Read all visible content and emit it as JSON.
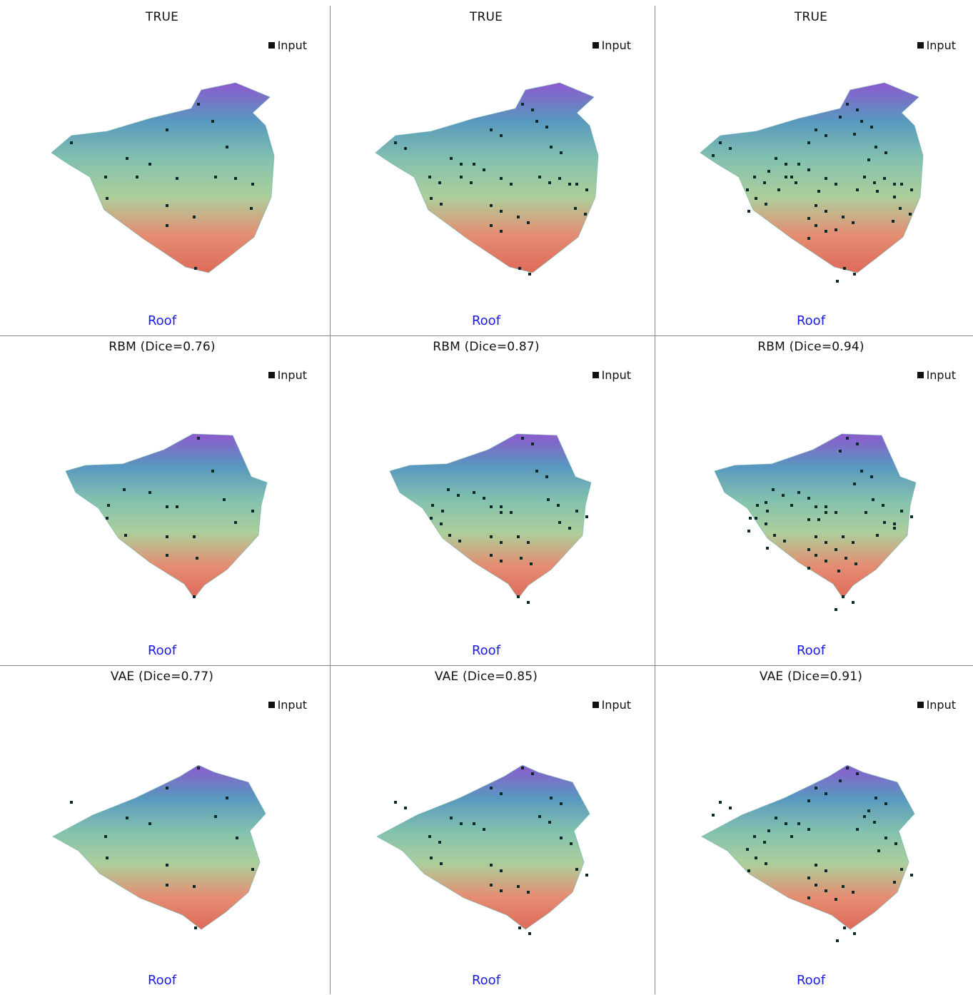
{
  "colors": {
    "roof": "#1a1ae6",
    "point": "#0d2a2a",
    "divider": "#888888"
  },
  "legend_label": "Input",
  "roof_label": "Roof",
  "rows": [
    {
      "row_id": "true",
      "titles": [
        "TRUE",
        "TRUE",
        "TRUE"
      ]
    },
    {
      "row_id": "rbm",
      "titles": [
        "RBM (Dice=0.76)",
        "RBM (Dice=0.87)",
        "RBM (Dice=0.94)"
      ]
    },
    {
      "row_id": "vae",
      "titles": [
        "VAE (Dice=0.77)",
        "VAE (Dice=0.85)",
        "VAE (Dice=0.91)"
      ]
    }
  ]
}
